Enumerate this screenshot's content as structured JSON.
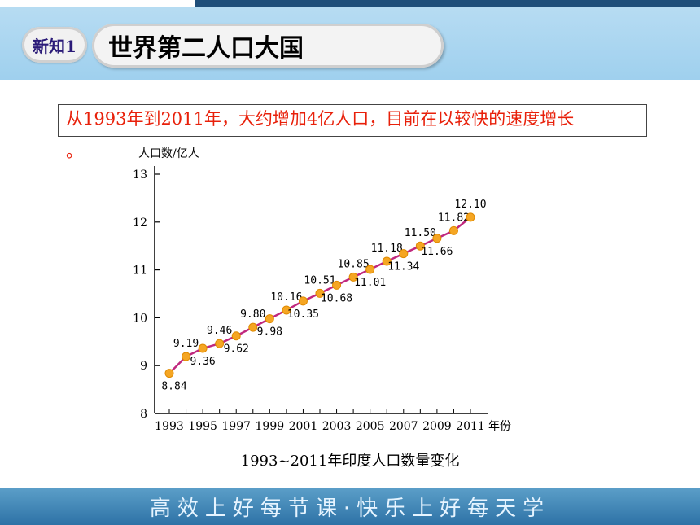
{
  "header": {
    "badge_label": "新知1",
    "title": "世界第二人口大国"
  },
  "note": {
    "line1": "从1993年到2011年，大约增加4亿人口，目前在以较快的速度增长",
    "line2": "。"
  },
  "chart_data": {
    "type": "line",
    "title": "1993~2011年印度人口数量变化",
    "ylabel": "人口数/亿人",
    "xlabel_suffix": "年份",
    "ylim": [
      8,
      13
    ],
    "yticks": [
      "8",
      "9",
      "10",
      "11",
      "12",
      "13"
    ],
    "xticks": [
      "1993",
      "1995",
      "1997",
      "1999",
      "2001",
      "2003",
      "2005",
      "2007",
      "2009",
      "2011"
    ],
    "x": [
      1993,
      1994,
      1995,
      1996,
      1997,
      1998,
      1999,
      2000,
      2001,
      2002,
      2003,
      2004,
      2005,
      2006,
      2007,
      2008,
      2009,
      2010,
      2011
    ],
    "values": [
      8.84,
      9.19,
      9.36,
      9.46,
      9.62,
      9.8,
      9.98,
      10.16,
      10.35,
      10.51,
      10.68,
      10.85,
      11.01,
      11.18,
      11.34,
      11.5,
      11.66,
      11.82,
      12.1
    ],
    "data_labels": [
      "8.84",
      "9.19",
      "9.36",
      "9.46",
      "9.62",
      "9.80",
      "9.98",
      "10.16",
      "10.35",
      "10.51",
      "10.68",
      "10.85",
      "11.01",
      "11.18",
      "11.34",
      "11.50",
      "11.66",
      "11.82",
      "12.10"
    ],
    "line_color": "#c0287e",
    "marker_color": "#f5a623"
  },
  "footer": {
    "slogan": "高效上好每节课·快乐上好每天学"
  }
}
